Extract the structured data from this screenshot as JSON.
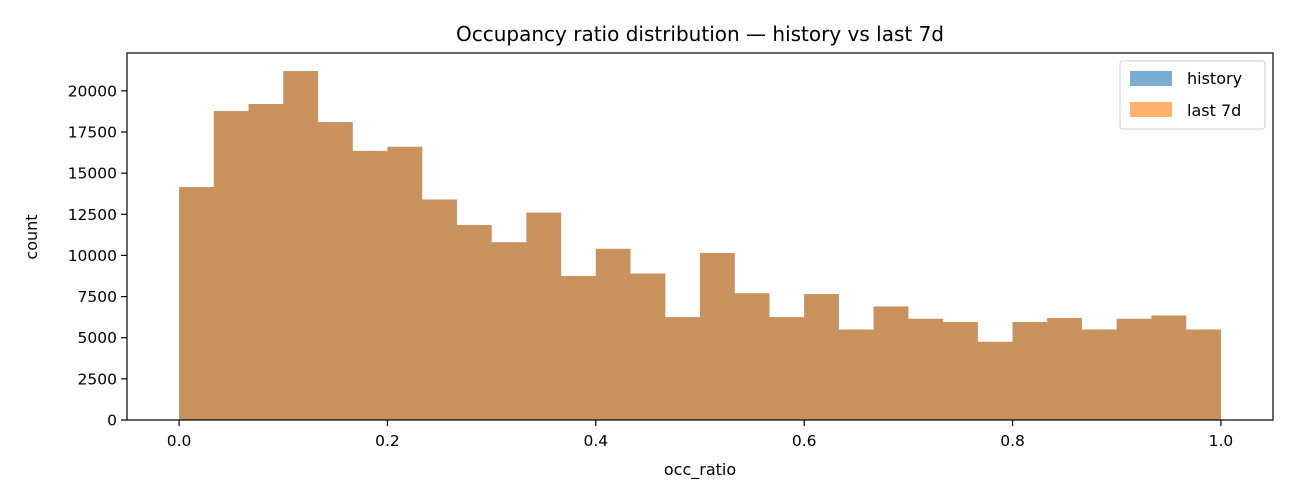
{
  "chart_data": {
    "type": "bar",
    "title": "Occupancy ratio distribution — history vs last 7d",
    "xlabel": "occ_ratio",
    "ylabel": "count",
    "xlim": [
      -0.05,
      1.05
    ],
    "ylim": [
      0,
      22300
    ],
    "xticks": [
      0.0,
      0.2,
      0.4,
      0.6,
      0.8,
      1.0
    ],
    "xtick_labels": [
      "0.0",
      "0.2",
      "0.4",
      "0.6",
      "0.8",
      "1.0"
    ],
    "yticks": [
      0,
      2500,
      5000,
      7500,
      10000,
      12500,
      15000,
      17500,
      20000
    ],
    "ytick_labels": [
      "0",
      "2500",
      "5000",
      "7500",
      "10000",
      "12500",
      "15000",
      "17500",
      "20000"
    ],
    "bins": 30,
    "bin_range": [
      0,
      1
    ],
    "legend_position": "top-right",
    "series": [
      {
        "name": "history",
        "color": "#1f77b4",
        "opacity": 0.6,
        "values": [
          14150,
          18770,
          19200,
          21200,
          18100,
          16350,
          16600,
          13400,
          11850,
          10800,
          12600,
          8750,
          10400,
          8900,
          6250,
          10150,
          7700,
          6250,
          7650,
          5500,
          6900,
          6150,
          5950,
          4750,
          5950,
          6200,
          5500,
          6150,
          6350,
          5500
        ]
      },
      {
        "name": "last 7d",
        "color": "#ff7f0e",
        "opacity": 0.6,
        "values": [
          14150,
          18770,
          19200,
          21200,
          18100,
          16350,
          16600,
          13400,
          11850,
          10800,
          12600,
          8750,
          10400,
          8900,
          6250,
          10150,
          7700,
          6250,
          7650,
          5500,
          6900,
          6150,
          5950,
          4750,
          5950,
          6200,
          5500,
          6150,
          6350,
          5500
        ]
      }
    ]
  }
}
